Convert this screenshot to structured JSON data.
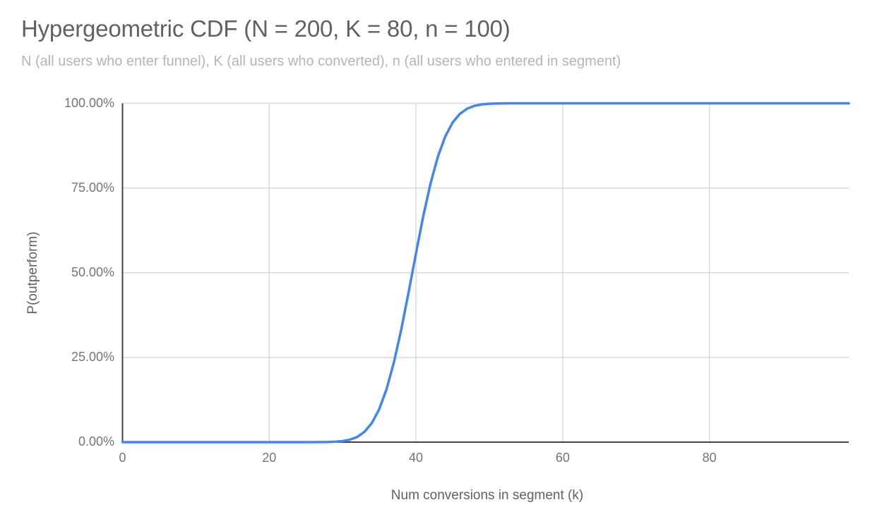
{
  "chart": {
    "title": "Hypergeometric CDF (N = 200, K = 80, n = 100)",
    "subtitle": "N (all users who enter funnel), K (all users who converted), n (all users who entered in segment)",
    "x_axis_title": "Num conversions in segment (k)",
    "y_axis_title": "P(outperform)"
  },
  "chart_data": {
    "type": "line",
    "title": "Hypergeometric CDF (N = 200, K = 80, n = 100)",
    "subtitle": "N (all users who enter funnel), K (all users who converted), n (all users who entered in segment)",
    "xlabel": "Num conversions in segment (k)",
    "ylabel": "P(outperform)",
    "xlim": [
      0,
      99
    ],
    "ylim": [
      0,
      1
    ],
    "grid": true,
    "legend": "none",
    "x_ticks": [
      {
        "value": 0,
        "label": "0"
      },
      {
        "value": 20,
        "label": "20"
      },
      {
        "value": 40,
        "label": "40"
      },
      {
        "value": 60,
        "label": "60"
      },
      {
        "value": 80,
        "label": "80"
      }
    ],
    "y_ticks": [
      {
        "value": 0.0,
        "label": "0.00%"
      },
      {
        "value": 0.25,
        "label": "25.00%"
      },
      {
        "value": 0.5,
        "label": "50.00%"
      },
      {
        "value": 0.75,
        "label": "75.00%"
      },
      {
        "value": 1.0,
        "label": "100.00%"
      }
    ],
    "x_start": 0,
    "x_step": 1,
    "series": [
      {
        "name": "P(outperform)",
        "values": [
          0,
          0,
          0,
          0,
          0,
          0,
          0,
          0,
          0,
          0,
          0,
          0,
          0,
          0,
          0,
          0,
          0,
          0,
          0,
          0,
          0,
          0,
          0,
          0,
          0,
          0,
          0.0001,
          0.0002,
          0.0005,
          0.0012,
          0.0031,
          0.0072,
          0.0154,
          0.0307,
          0.0567,
          0.0976,
          0.157,
          0.236,
          0.333,
          0.4428,
          0.5572,
          0.667,
          0.764,
          0.843,
          0.9023,
          0.9433,
          0.9693,
          0.9846,
          0.9928,
          0.9969,
          0.9988,
          0.9995,
          0.9998,
          0.9999,
          1,
          1,
          1,
          1,
          1,
          1,
          1,
          1,
          1,
          1,
          1,
          1,
          1,
          1,
          1,
          1,
          1,
          1,
          1,
          1,
          1,
          1,
          1,
          1,
          1,
          1,
          1,
          1,
          1,
          1,
          1,
          1,
          1,
          1,
          1,
          1,
          1,
          1,
          1,
          1,
          1,
          1,
          1,
          1,
          1,
          1
        ]
      }
    ],
    "colors": {
      "line": "#4285f4",
      "gridline": "#d9d9d9",
      "axis": "#424242",
      "title": "#616161",
      "subtitle": "#b5b5b5",
      "tick_label": "#757575",
      "axis_title": "#616161",
      "background": "#ffffff"
    }
  }
}
